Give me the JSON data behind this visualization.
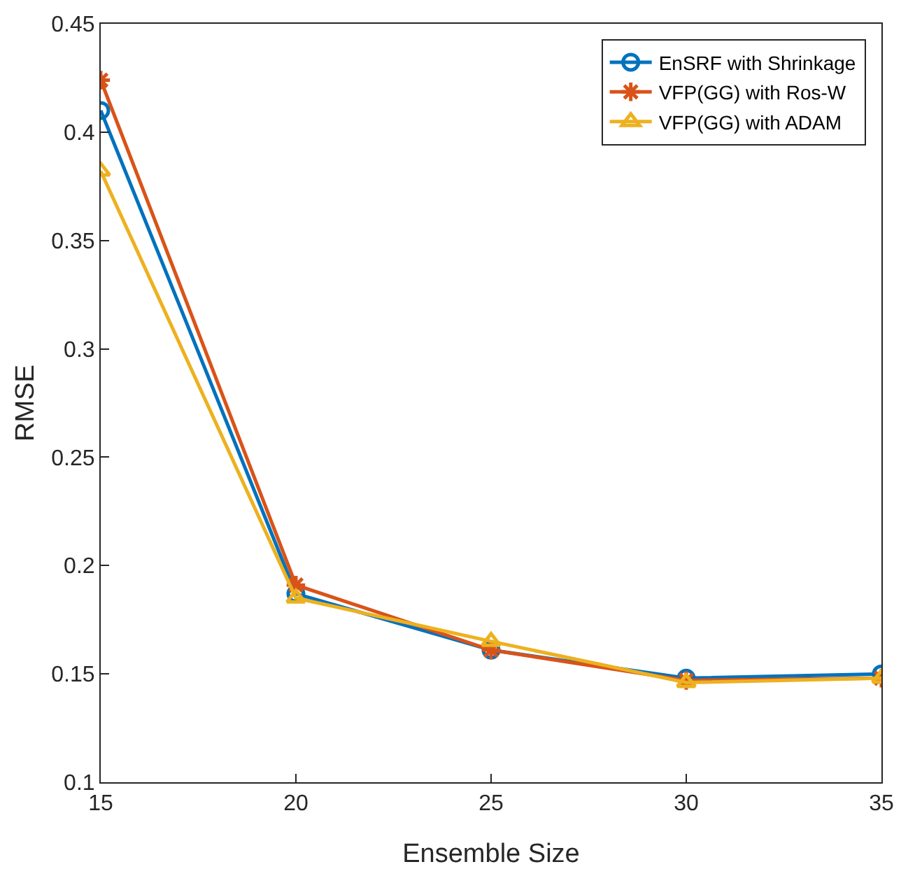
{
  "chart_data": {
    "type": "line",
    "xlabel": "Ensemble Size",
    "ylabel": "RMSE",
    "x": [
      15,
      20,
      25,
      30,
      35
    ],
    "xlim": [
      15,
      35
    ],
    "xticks": [
      15,
      20,
      25,
      30,
      35
    ],
    "ylim": [
      0.1,
      0.45
    ],
    "yticks": [
      0.1,
      0.15,
      0.2,
      0.25,
      0.3,
      0.35,
      0.4,
      0.45
    ],
    "grid": false,
    "legend": "top right",
    "line_style": "solid",
    "series": [
      {
        "name": "EnSRF with Shrinkage",
        "color": "#0072bd",
        "marker": "circle",
        "values": [
          0.41,
          0.187,
          0.161,
          0.148,
          0.15
        ]
      },
      {
        "name": "VFP(GG) with Ros-W",
        "color": "#d95319",
        "marker": "cross",
        "values": [
          0.424,
          0.191,
          0.161,
          0.147,
          0.148
        ]
      },
      {
        "name": "VFP(GG) with ADAM",
        "color": "#edb120",
        "marker": "triangle",
        "values": [
          0.382,
          0.185,
          0.165,
          0.146,
          0.148
        ]
      }
    ]
  }
}
